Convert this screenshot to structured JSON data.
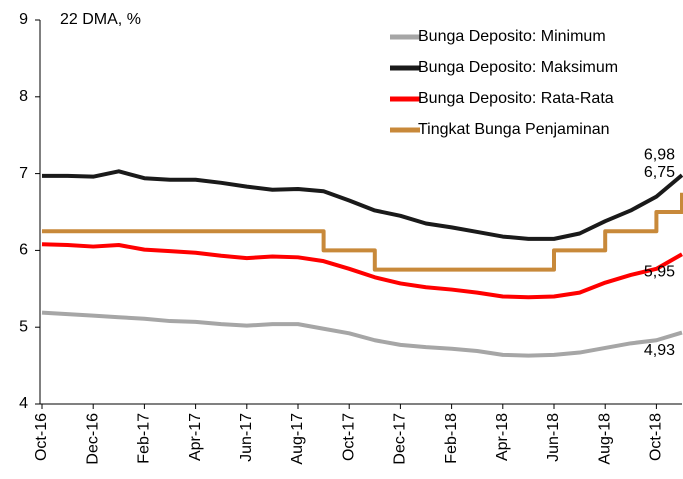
{
  "chart_data": {
    "type": "line",
    "y_title": "22 DMA, %",
    "categories": [
      "Oct-16",
      null,
      "Dec-16",
      null,
      "Feb-17",
      null,
      "Apr-17",
      null,
      "Jun-17",
      null,
      "Aug-17",
      null,
      "Oct-17",
      null,
      "Dec-17",
      null,
      "Feb-18",
      null,
      "Apr-18",
      null,
      "Jun-18",
      null,
      "Aug-18",
      null,
      "Oct-18",
      null
    ],
    "ylim": [
      4,
      9
    ],
    "yticks": [
      4,
      5,
      6,
      7,
      8,
      9
    ],
    "legend": "top-right",
    "series": [
      {
        "name": "Bunga Deposito: Minimum",
        "color": "#a6a6a6",
        "step": false,
        "end_label": "4,93",
        "values": [
          5.19,
          5.17,
          5.15,
          5.13,
          5.11,
          5.08,
          5.07,
          5.04,
          5.02,
          5.04,
          5.04,
          4.98,
          4.92,
          4.83,
          4.77,
          4.74,
          4.72,
          4.69,
          4.64,
          4.63,
          4.64,
          4.67,
          4.73,
          4.79,
          4.83,
          4.93
        ]
      },
      {
        "name": "Bunga Deposito: Maksimum",
        "color": "#1a1a1a",
        "step": false,
        "end_label": "6,98",
        "values": [
          6.97,
          6.97,
          6.96,
          7.03,
          6.94,
          6.92,
          6.92,
          6.88,
          6.83,
          6.79,
          6.8,
          6.77,
          6.65,
          6.52,
          6.45,
          6.35,
          6.3,
          6.24,
          6.18,
          6.15,
          6.15,
          6.22,
          6.38,
          6.52,
          6.7,
          6.98
        ]
      },
      {
        "name": "Bunga Deposito: Rata-Rata",
        "color": "#ff0000",
        "step": false,
        "end_label": "5,95",
        "values": [
          6.08,
          6.07,
          6.05,
          6.07,
          6.01,
          5.99,
          5.97,
          5.93,
          5.9,
          5.92,
          5.91,
          5.86,
          5.76,
          5.65,
          5.57,
          5.52,
          5.49,
          5.45,
          5.4,
          5.39,
          5.4,
          5.45,
          5.58,
          5.68,
          5.76,
          5.95
        ]
      },
      {
        "name": "Tingkat Bunga Penjaminan",
        "color": "#c8893a",
        "step": true,
        "end_label": "6,75",
        "values": [
          6.25,
          6.25,
          6.25,
          6.25,
          6.25,
          6.25,
          6.25,
          6.25,
          6.25,
          6.25,
          6.25,
          6.0,
          6.0,
          5.75,
          5.75,
          5.75,
          5.75,
          5.75,
          5.75,
          5.75,
          6.0,
          6.0,
          6.25,
          6.25,
          6.5,
          6.75
        ]
      }
    ]
  }
}
